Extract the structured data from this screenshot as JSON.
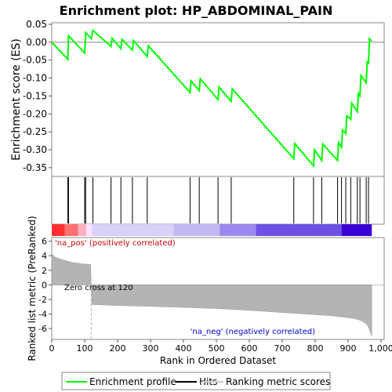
{
  "chart_data": {
    "type": "line",
    "title": "Enrichment plot: HP_ABDOMINAL_PAIN",
    "xlabel": "Rank in Ordered Dataset",
    "xlim": [
      0,
      1000
    ],
    "x_ticks": [
      "0",
      "100",
      "200",
      "300",
      "400",
      "500",
      "600",
      "700",
      "800",
      "900",
      "1,000"
    ],
    "es_panel": {
      "ylabel": "Enrichment score (ES)",
      "ylim": [
        -0.37,
        0.05
      ],
      "y_ticks": [
        "0.05",
        "0.00",
        "-0.05",
        "-0.10",
        "-0.15",
        "-0.20",
        "-0.25",
        "-0.30",
        "-0.35"
      ],
      "grid": false,
      "zero_line": true,
      "series": [
        {
          "name": "Enrichment profile",
          "color": "#00ff00",
          "x": [
            0,
            49,
            51,
            100,
            103,
            120,
            125,
            180,
            183,
            210,
            213,
            245,
            248,
            290,
            293,
            420,
            423,
            448,
            451,
            505,
            508,
            545,
            548,
            735,
            738,
            795,
            798,
            820,
            823,
            868,
            871,
            880,
            883,
            893,
            896,
            908,
            911,
            928,
            931,
            936,
            939,
            955,
            958,
            962,
            965,
            972
          ],
          "y": [
            0.0,
            -0.048,
            0.018,
            -0.03,
            0.027,
            0.01,
            0.033,
            -0.012,
            0.011,
            -0.018,
            0.008,
            -0.022,
            0.005,
            -0.04,
            -0.01,
            -0.14,
            -0.108,
            -0.135,
            -0.102,
            -0.16,
            -0.125,
            -0.165,
            -0.13,
            -0.325,
            -0.283,
            -0.345,
            -0.3,
            -0.33,
            -0.284,
            -0.33,
            -0.28,
            -0.293,
            -0.245,
            -0.255,
            -0.205,
            -0.215,
            -0.17,
            -0.194,
            -0.143,
            -0.15,
            -0.093,
            -0.113,
            -0.055,
            -0.058,
            0.01,
            0.003
          ]
        }
      ]
    },
    "hits": {
      "name": "Hits",
      "positions": [
        49,
        51,
        100,
        103,
        125,
        180,
        210,
        245,
        290,
        420,
        448,
        505,
        545,
        735,
        795,
        820,
        868,
        880,
        893,
        908,
        928,
        936,
        955,
        962
      ]
    },
    "ranking_panel": {
      "ylabel": "Ranked list metric (PreRanked)",
      "ylim": [
        -7.5,
        6.5
      ],
      "y_ticks": [
        "6",
        "4",
        "2",
        "0",
        "-2",
        "-4",
        "-6"
      ],
      "series_name": "Ranking metric scores",
      "x": [
        0,
        10,
        30,
        60,
        90,
        118,
        120,
        122,
        200,
        300,
        400,
        500,
        600,
        700,
        800,
        850,
        880,
        900,
        920,
        940,
        955,
        963,
        968,
        972
      ],
      "values": [
        4.3,
        3.8,
        3.5,
        3.1,
        2.9,
        2.8,
        0,
        -2.7,
        -2.85,
        -2.95,
        -3.1,
        -3.25,
        -3.5,
        -3.8,
        -4.1,
        -4.25,
        -4.4,
        -4.5,
        -4.65,
        -4.9,
        -5.3,
        -5.9,
        -6.6,
        -7.0
      ],
      "zero_cross_label": "Zero cross at 120",
      "pos_label": "'na_pos' (positively correlated)",
      "neg_label": "'na_neg' (negatively correlated)",
      "pos_color": "#ff0000",
      "neg_color": "#0000ff"
    },
    "legend": {
      "placement": "bottom",
      "items": [
        {
          "label": "Enrichment profile",
          "color": "#00ff00"
        },
        {
          "label": "Hits",
          "color": "#000000"
        },
        {
          "label": "Ranking metric scores",
          "color": "#cccccc"
        }
      ]
    },
    "colorbar": {
      "segments": [
        {
          "x0": 0,
          "x1": 40,
          "color": "#ff3030"
        },
        {
          "x0": 40,
          "x1": 80,
          "color": "#ff7070"
        },
        {
          "x0": 80,
          "x1": 105,
          "color": "#ffb0c0"
        },
        {
          "x0": 105,
          "x1": 122,
          "color": "#ffe0ff"
        },
        {
          "x0": 122,
          "x1": 370,
          "color": "#d8d0f8"
        },
        {
          "x0": 370,
          "x1": 510,
          "color": "#c4b8f4"
        },
        {
          "x0": 510,
          "x1": 620,
          "color": "#9c88ee"
        },
        {
          "x0": 620,
          "x1": 880,
          "color": "#6e50e4"
        },
        {
          "x0": 880,
          "x1": 972,
          "color": "#3a00d4"
        }
      ]
    }
  }
}
